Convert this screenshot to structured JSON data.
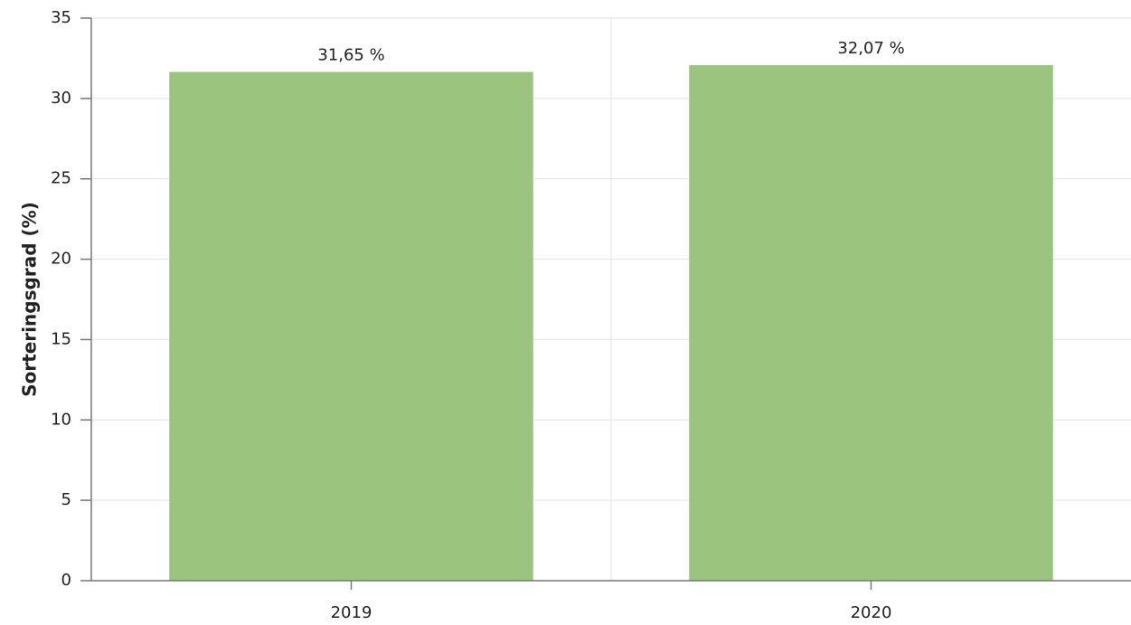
{
  "chart_data": {
    "type": "bar",
    "y_label": "Sorteringsgrad (%)",
    "categories": [
      "2019",
      "2020"
    ],
    "values": [
      31.65,
      32.07
    ],
    "value_labels": [
      "31,65 %",
      "32,07 %"
    ],
    "color": "#9bc47e",
    "ylim": [
      0,
      35
    ],
    "yticks": [
      0,
      5,
      10,
      15,
      20,
      25,
      30,
      35
    ],
    "grid": true
  }
}
